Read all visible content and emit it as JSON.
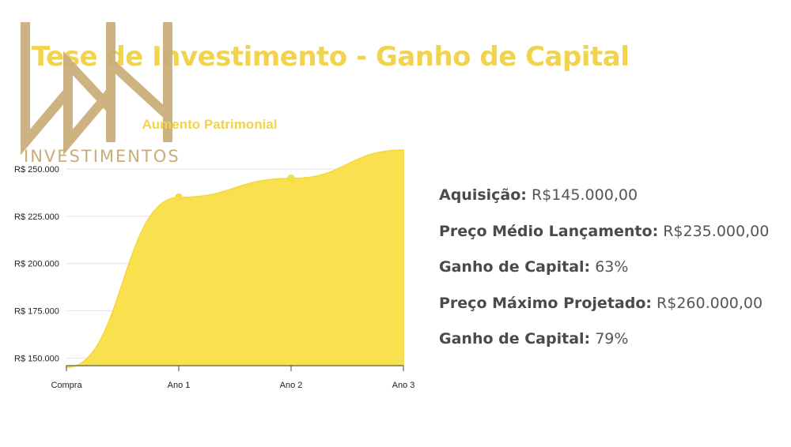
{
  "header": {
    "title": "Tese de Investimento - Ganho de Capital"
  },
  "logo": {
    "text": "INVESTIMENTOS",
    "color": "#c9ad78"
  },
  "chart_data": {
    "type": "area",
    "title": "Aumento Patrimonial",
    "categories": [
      "Compra",
      "Ano 1",
      "Ano 2",
      "Ano 3"
    ],
    "series": [
      {
        "values": [
          145000,
          235000,
          245000,
          260000
        ]
      }
    ],
    "yticks": [
      "R$ 150.000",
      "R$ 175.000",
      "R$ 200.000",
      "R$ 225.000",
      "R$ 250.000"
    ],
    "ytick_values": [
      150000,
      175000,
      200000,
      225000,
      250000
    ],
    "ylim": [
      146000,
      260000
    ],
    "grid": true,
    "fill_color": "#f9e04e",
    "xlabel": "",
    "ylabel": ""
  },
  "facts": [
    {
      "label": "Aquisição:",
      "value": "R$145.000,00"
    },
    {
      "label": "Preço Médio Lançamento:",
      "value": "R$235.000,00"
    },
    {
      "label": "Ganho de Capital:",
      "value": "63%"
    },
    {
      "label": "Preço Máximo Projetado:",
      "value": "R$260.000,00"
    },
    {
      "label": "Ganho de Capital:",
      "value": "79%"
    }
  ]
}
